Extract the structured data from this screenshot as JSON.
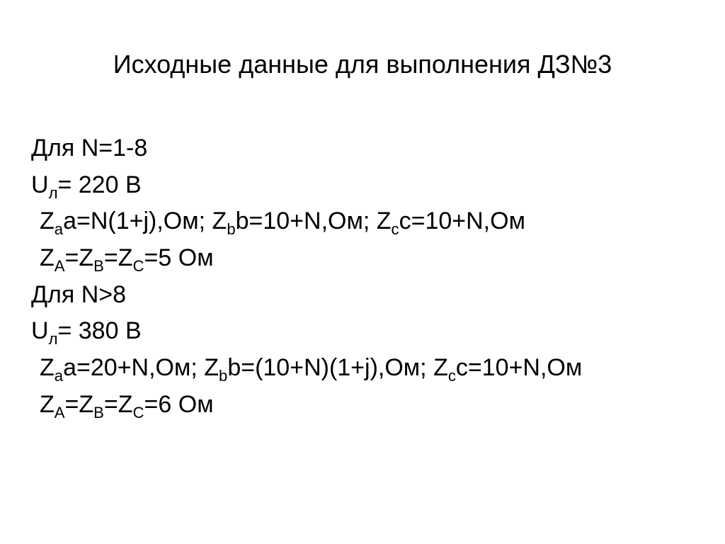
{
  "title_fontsize": 36,
  "body_fontsize": 34,
  "text_color": "#000000",
  "background_color": "#ffffff",
  "title": "Исходные данные для выполнения ДЗ№3",
  "group1": {
    "cond": "Для N=1-8",
    "ul_label": "Uл= 220 В",
    "za_eq": "a=N(1+j),Ом;  ",
    "zb_eq": "b=10+N,Ом; ",
    "zc_eq": "c=10+N,Ом",
    "zabc_eq_tail": "=5 Ом"
  },
  "group2": {
    "cond": "Для N>8",
    "ul_label": "Uл= 380 В",
    "za_eq": "a=20+N,Ом;  ",
    "zb_eq": "b=(10+N)(1+j),Ом; ",
    "zc_eq": "c=10+N,Ом",
    "zabc_eq_tail": "=6 Ом"
  },
  "sym": {
    "Z": "Z",
    "sub_a": "a",
    "sub_b": "b",
    "sub_c": "c",
    "sub_A": "A",
    "sub_B": "B",
    "sub_C": "C",
    "eq": "="
  }
}
